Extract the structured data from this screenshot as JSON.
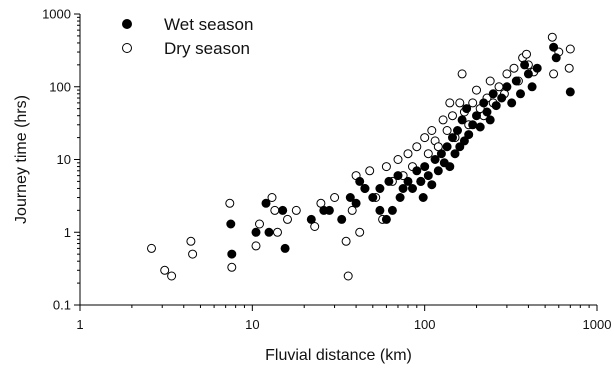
{
  "chart_data": {
    "type": "scatter",
    "x_scale": "log",
    "y_scale": "log",
    "xlim": [
      1,
      1000
    ],
    "ylim": [
      0.1,
      1000
    ],
    "xlabel": "Fluvial distance (km)",
    "ylabel": "Journey  time (hrs)",
    "x_ticks": [
      "1",
      "10",
      "100",
      "1000"
    ],
    "y_ticks": [
      "0.1",
      "1",
      "10",
      "100",
      "1000"
    ],
    "grid": false,
    "legend_position": "top-left",
    "series": [
      {
        "name": "Wet season",
        "marker": "filled-circle",
        "color": "#000000",
        "points": [
          [
            7.5,
            1.3
          ],
          [
            7.6,
            0.5
          ],
          [
            10.5,
            1.0
          ],
          [
            12.0,
            2.5
          ],
          [
            12.5,
            1.0
          ],
          [
            15.0,
            2.0
          ],
          [
            15.5,
            0.6
          ],
          [
            22,
            1.5
          ],
          [
            26,
            2.0
          ],
          [
            28,
            2.0
          ],
          [
            33,
            1.5
          ],
          [
            37,
            3.0
          ],
          [
            40,
            2.5
          ],
          [
            42,
            5.0
          ],
          [
            45,
            4.0
          ],
          [
            50,
            3.0
          ],
          [
            55,
            2.0
          ],
          [
            55,
            4.0
          ],
          [
            60,
            1.5
          ],
          [
            62,
            5.0
          ],
          [
            65,
            2.0
          ],
          [
            70,
            6.0
          ],
          [
            72,
            3.0
          ],
          [
            75,
            4.0
          ],
          [
            80,
            5.0
          ],
          [
            85,
            4.0
          ],
          [
            90,
            7.0
          ],
          [
            95,
            5.0
          ],
          [
            98,
            3.0
          ],
          [
            100,
            8.0
          ],
          [
            105,
            6.0
          ],
          [
            110,
            4.5
          ],
          [
            115,
            10.0
          ],
          [
            120,
            7.0
          ],
          [
            125,
            12.0
          ],
          [
            130,
            9.0
          ],
          [
            135,
            15.0
          ],
          [
            140,
            8.0
          ],
          [
            145,
            20.0
          ],
          [
            150,
            12.0
          ],
          [
            155,
            25.0
          ],
          [
            160,
            15.0
          ],
          [
            165,
            35.0
          ],
          [
            170,
            18.0
          ],
          [
            175,
            50.0
          ],
          [
            180,
            22.0
          ],
          [
            190,
            30.0
          ],
          [
            200,
            40.0
          ],
          [
            210,
            28.0
          ],
          [
            220,
            60.0
          ],
          [
            230,
            45.0
          ],
          [
            240,
            35.0
          ],
          [
            250,
            80.0
          ],
          [
            260,
            55.0
          ],
          [
            280,
            70.0
          ],
          [
            300,
            100.0
          ],
          [
            320,
            60.0
          ],
          [
            340,
            120.0
          ],
          [
            360,
            80.0
          ],
          [
            380,
            200.0
          ],
          [
            400,
            150.0
          ],
          [
            420,
            100.0
          ],
          [
            450,
            180.0
          ],
          [
            560,
            350.0
          ],
          [
            580,
            250.0
          ],
          [
            700,
            85.0
          ]
        ]
      },
      {
        "name": "Dry season",
        "marker": "open-circle",
        "color": "#000000",
        "points": [
          [
            2.6,
            0.6
          ],
          [
            3.1,
            0.3
          ],
          [
            3.4,
            0.25
          ],
          [
            4.4,
            0.75
          ],
          [
            4.5,
            0.5
          ],
          [
            7.4,
            2.5
          ],
          [
            7.6,
            0.33
          ],
          [
            10.5,
            0.65
          ],
          [
            11,
            1.3
          ],
          [
            13,
            3.0
          ],
          [
            13.5,
            2.0
          ],
          [
            14,
            1.0
          ],
          [
            16,
            1.5
          ],
          [
            18,
            2.0
          ],
          [
            23,
            1.2
          ],
          [
            25,
            2.5
          ],
          [
            30,
            3.0
          ],
          [
            35,
            0.75
          ],
          [
            36,
            0.25
          ],
          [
            38,
            2.0
          ],
          [
            40,
            6.0
          ],
          [
            42,
            1.0
          ],
          [
            45,
            4.0
          ],
          [
            48,
            7.0
          ],
          [
            52,
            3.0
          ],
          [
            57,
            1.5
          ],
          [
            60,
            8.0
          ],
          [
            65,
            5.0
          ],
          [
            70,
            10.0
          ],
          [
            75,
            6.0
          ],
          [
            80,
            12.0
          ],
          [
            85,
            8.0
          ],
          [
            90,
            15.0
          ],
          [
            95,
            5.0
          ],
          [
            100,
            20.0
          ],
          [
            105,
            12.0
          ],
          [
            110,
            25.0
          ],
          [
            115,
            18.0
          ],
          [
            120,
            15.0
          ],
          [
            128,
            35.0
          ],
          [
            135,
            25.0
          ],
          [
            140,
            60.0
          ],
          [
            145,
            40.0
          ],
          [
            150,
            20.0
          ],
          [
            160,
            60.0
          ],
          [
            165,
            150.0
          ],
          [
            170,
            45.0
          ],
          [
            180,
            30.0
          ],
          [
            190,
            60.0
          ],
          [
            200,
            90.0
          ],
          [
            210,
            50.0
          ],
          [
            220,
            40.0
          ],
          [
            230,
            70.0
          ],
          [
            240,
            120.0
          ],
          [
            250,
            60.0
          ],
          [
            270,
            100.0
          ],
          [
            290,
            80.0
          ],
          [
            300,
            150.0
          ],
          [
            330,
            180.0
          ],
          [
            350,
            120.0
          ],
          [
            370,
            250.0
          ],
          [
            390,
            280.0
          ],
          [
            400,
            200.0
          ],
          [
            430,
            160.0
          ],
          [
            550,
            480.0
          ],
          [
            560,
            150.0
          ],
          [
            600,
            300.0
          ],
          [
            700,
            330.0
          ],
          [
            690,
            180.0
          ]
        ]
      }
    ]
  }
}
